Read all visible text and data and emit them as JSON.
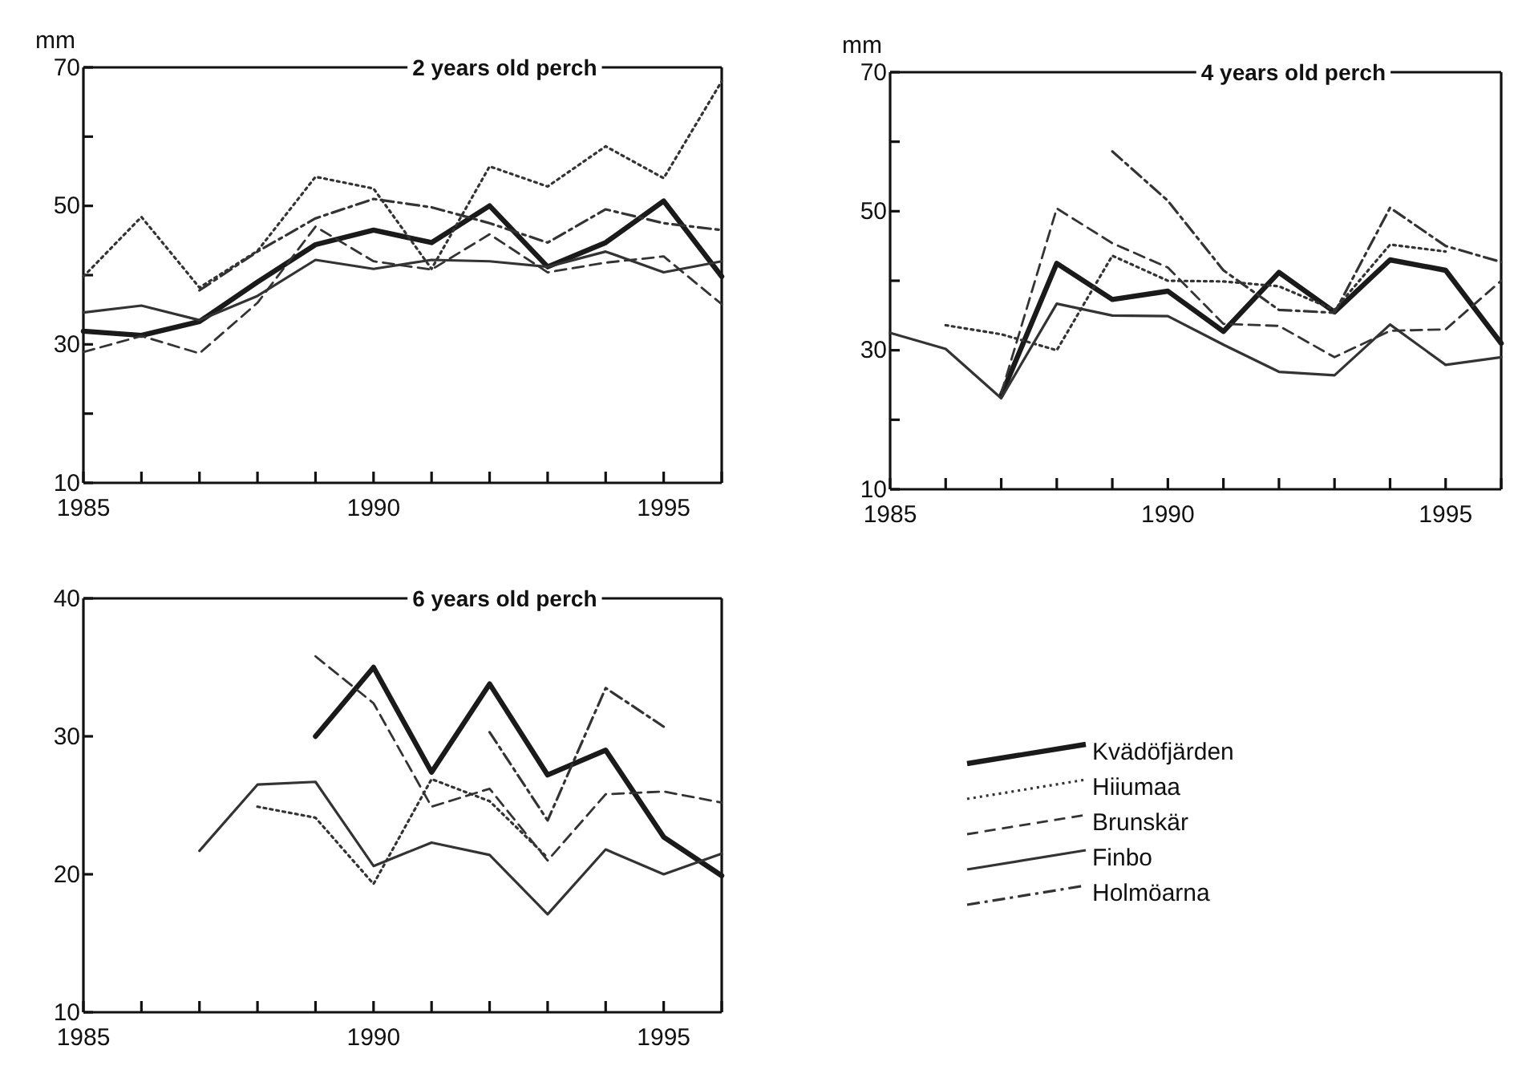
{
  "chart_data": [
    {
      "type": "line",
      "title": "2 years old perch",
      "ylabel": "mm",
      "xlim": [
        1985,
        1996
      ],
      "ylim": [
        10,
        70
      ],
      "xticks": [
        1985,
        {
          "value": 1986,
          "label": null
        },
        {
          "value": 1987,
          "label": null
        },
        {
          "value": 1988,
          "label": null
        },
        {
          "value": 1989,
          "label": null
        },
        1990,
        {
          "value": 1991,
          "label": null
        },
        {
          "value": 1992,
          "label": null
        },
        {
          "value": 1993,
          "label": null
        },
        {
          "value": 1994,
          "label": null
        },
        1995,
        {
          "value": 1996,
          "label": null
        }
      ],
      "yticks": [
        10,
        {
          "value": 20,
          "label": null
        },
        30,
        {
          "value": 40,
          "label": null
        },
        50,
        {
          "value": 60,
          "label": null
        },
        70
      ],
      "grid": false,
      "legend": false,
      "series": [
        {
          "color": "#1a1a1a",
          "line_style": "solid",
          "x": [
            1985,
            1986,
            1987,
            1988,
            1989,
            1990,
            1991,
            1992,
            1993,
            1994,
            1995,
            1996
          ],
          "values": [
            31.9,
            31.3,
            33.3,
            39,
            44.4,
            46.5,
            44.7,
            50,
            41.2,
            44.7,
            50.7,
            39.8
          ]
        },
        {
          "color": "#333333",
          "line_style": "dotted",
          "x": [
            1985,
            1986,
            1987,
            1988,
            1989,
            1990,
            1991,
            1992,
            1993,
            1994,
            1995,
            1996
          ],
          "values": [
            39.8,
            48.4,
            38.2,
            43.5,
            54.2,
            52.5,
            40.9,
            55.7,
            52.8,
            58.6,
            54,
            68
          ]
        },
        {
          "color": "#333333",
          "line_style": "dashed",
          "x": [
            1985,
            1986,
            1987,
            1988,
            1989,
            1990,
            1991,
            1992,
            1993,
            1994,
            1995,
            1996
          ],
          "values": [
            28.9,
            31.2,
            28.7,
            36,
            47,
            42,
            40.8,
            45.9,
            40.4,
            41.8,
            42.7,
            35.8
          ]
        },
        {
          "color": "#333333",
          "line_style": "solid",
          "x": [
            1985,
            1986,
            1987,
            1988,
            1989,
            1990,
            1991,
            1992,
            1993,
            1994,
            1995,
            1996
          ],
          "values": [
            34.6,
            35.6,
            33.5,
            37,
            42.2,
            40.9,
            42.2,
            42,
            41.2,
            43.4,
            40.4,
            42
          ]
        },
        {
          "color": "#333333",
          "line_style": "dashdot",
          "x": [
            1987,
            1988,
            1989,
            1990,
            1991,
            1992,
            1993,
            1994,
            1995,
            1996
          ],
          "values": [
            37.8,
            43.4,
            48.2,
            51,
            49.8,
            47.5,
            44.7,
            49.5,
            47.5,
            46.5
          ]
        }
      ]
    },
    {
      "type": "line",
      "title": "4 years old perch",
      "ylabel": "mm",
      "xlim": [
        1985,
        1996
      ],
      "ylim": [
        10,
        70
      ],
      "xticks": [
        1985,
        {
          "value": 1986,
          "label": null
        },
        {
          "value": 1987,
          "label": null
        },
        {
          "value": 1988,
          "label": null
        },
        {
          "value": 1989,
          "label": null
        },
        1990,
        {
          "value": 1991,
          "label": null
        },
        {
          "value": 1992,
          "label": null
        },
        {
          "value": 1993,
          "label": null
        },
        {
          "value": 1994,
          "label": null
        },
        1995,
        {
          "value": 1996,
          "label": null
        }
      ],
      "yticks": [
        10,
        {
          "value": 20,
          "label": null
        },
        30,
        {
          "value": 40,
          "label": null
        },
        50,
        {
          "value": 60,
          "label": null
        },
        70
      ],
      "grid": false,
      "legend": false,
      "series": [
        {
          "color": "#1a1a1a",
          "line_style": "solid",
          "x": [
            1987,
            1988,
            1989,
            1990,
            1991,
            1992,
            1993,
            1994,
            1995,
            1996
          ],
          "values": [
            23.5,
            42.5,
            37.3,
            38.5,
            32.7,
            41.2,
            35.5,
            43,
            41.5,
            31
          ]
        },
        {
          "color": "#333333",
          "line_style": "dotted",
          "x": [
            1986,
            1987,
            1988,
            1989,
            1990,
            1991,
            1992,
            1993,
            1994,
            1995
          ],
          "values": [
            33.6,
            32.3,
            30,
            43.6,
            40,
            39.9,
            39.2,
            35.8,
            45.2,
            44.2
          ]
        },
        {
          "color": "#333333",
          "line_style": "dashed",
          "x": [
            1987,
            1988,
            1989,
            1990,
            1991,
            1992,
            1993,
            1994,
            1995,
            1996
          ],
          "values": [
            23.8,
            50.4,
            45.4,
            41.9,
            33.8,
            33.5,
            29,
            32.8,
            33,
            40
          ]
        },
        {
          "color": "#333333",
          "line_style": "solid",
          "x": [
            1985,
            1986,
            1987,
            1988,
            1989,
            1990,
            1991,
            1992,
            1993,
            1994,
            1995,
            1996
          ],
          "values": [
            32.5,
            30.2,
            23.1,
            36.7,
            35,
            34.9,
            30.8,
            26.9,
            26.4,
            33.7,
            27.9,
            29
          ]
        },
        {
          "color": "#333333",
          "line_style": "dashdot",
          "x": [
            1989,
            1990,
            1991,
            1992,
            1993,
            1994,
            1995,
            1996
          ],
          "values": [
            58.6,
            51.5,
            41.5,
            35.8,
            35.4,
            50.5,
            45,
            42.7
          ]
        }
      ]
    },
    {
      "type": "line",
      "title": "6 years old perch",
      "xlim": [
        1985,
        1996
      ],
      "ylim": [
        10,
        40
      ],
      "xticks": [
        1985,
        {
          "value": 1986,
          "label": null
        },
        {
          "value": 1987,
          "label": null
        },
        {
          "value": 1988,
          "label": null
        },
        {
          "value": 1989,
          "label": null
        },
        1990,
        {
          "value": 1991,
          "label": null
        },
        {
          "value": 1992,
          "label": null
        },
        {
          "value": 1993,
          "label": null
        },
        {
          "value": 1994,
          "label": null
        },
        1995,
        {
          "value": 1996,
          "label": null
        }
      ],
      "yticks": [
        10,
        20,
        30,
        40
      ],
      "grid": false,
      "legend": "right",
      "series": [
        {
          "name": "Kvädöfjärden",
          "color": "#1a1a1a",
          "line_style": "solid",
          "x": [
            1989,
            1990,
            1991,
            1992,
            1993,
            1994,
            1995,
            1996
          ],
          "values": [
            30,
            35,
            27.4,
            33.8,
            27.2,
            29,
            22.7,
            19.9
          ]
        },
        {
          "name": "Hiiumaa",
          "color": "#333333",
          "line_style": "dotted",
          "x": [
            1988,
            1989,
            1990,
            1991,
            1992,
            1993
          ],
          "values": [
            24.9,
            24.1,
            19.3,
            26.9,
            25.3,
            21.2
          ]
        },
        {
          "name": "Brunskär",
          "color": "#333333",
          "line_style": "dashed",
          "x": [
            1989,
            1990,
            1991,
            1992,
            1993,
            1994,
            1995,
            1996
          ],
          "values": [
            35.8,
            32.4,
            24.9,
            26.2,
            21,
            25.8,
            26,
            25.2
          ]
        },
        {
          "name": "Finbo",
          "color": "#333333",
          "line_style": "solid",
          "x": [
            1987,
            1988,
            1989,
            1990,
            1991,
            1992,
            1993,
            1994,
            1995,
            1996
          ],
          "values": [
            21.7,
            26.5,
            26.7,
            20.6,
            22.3,
            21.4,
            17.1,
            21.8,
            20,
            21.5
          ]
        },
        {
          "name": "Holmöarna",
          "color": "#333333",
          "line_style": "dashdot",
          "x": [
            1992,
            1993,
            1994,
            1995
          ],
          "values": [
            30.3,
            23.9,
            33.5,
            30.7
          ]
        }
      ]
    }
  ]
}
